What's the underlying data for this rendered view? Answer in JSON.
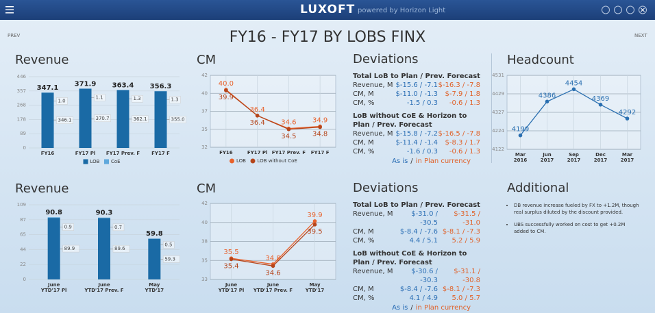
{
  "header": {
    "brand": "LUXOFT",
    "tagline": "powered by Horizon Light",
    "prev": "PREV",
    "next": "NEXT",
    "title": "FY16 - FY17 BY LOBS FINX"
  },
  "chart_data": [
    {
      "type": "bar",
      "title": "Revenue",
      "categories": [
        "FY16",
        "FY17 Pl",
        "FY17 Prev. F",
        "FY17 F"
      ],
      "totals": [
        347.1,
        371.9,
        363.4,
        356.3
      ],
      "series": [
        {
          "name": "LOB",
          "color": "#1a6aa5",
          "values": [
            346.1,
            370.7,
            362.1,
            355.0
          ],
          "value_labels": [
            "346.1",
            "370.7",
            "362.1",
            "355.0"
          ]
        },
        {
          "name": "CoE",
          "color": "#5fa8dc",
          "values": [
            1.0,
            1.1,
            1.3,
            1.3
          ],
          "value_labels": [
            "1.0",
            "1.1",
            "1.3",
            "1.3"
          ]
        }
      ],
      "ylim": [
        0,
        446
      ],
      "yticks": [
        0,
        {
          "value": 89.2,
          "label": "89"
        },
        {
          "value": 178.4,
          "label": "178"
        },
        {
          "value": 267.6,
          "label": "268"
        },
        {
          "value": 356.8,
          "label": "357"
        },
        446
      ],
      "grid": true,
      "legend": "bottom"
    },
    {
      "type": "line",
      "title": "CM",
      "categories": [
        "FY16",
        "FY17 Pl",
        "FY17 Prev. F",
        "FY17 F"
      ],
      "series": [
        {
          "name": "LOB",
          "color": "#e8622c",
          "values": [
            40.0,
            36.4,
            34.6,
            34.9
          ],
          "value_labels": [
            "40.0",
            "36.4",
            "34.6",
            "34.9"
          ]
        },
        {
          "name": "LOB without CoE",
          "color": "#b5451b",
          "values": [
            39.9,
            36.4,
            34.5,
            34.8
          ]
        }
      ],
      "ylim": [
        32,
        42
      ],
      "yticks": [
        32,
        {
          "value": 34.5,
          "label": "35"
        },
        37,
        {
          "value": 39.5,
          "label": "40"
        },
        42
      ],
      "grid": true,
      "legend": "bottom"
    },
    {
      "type": "line",
      "title": "Headcount",
      "categories": [
        "Mar\n2016",
        "Jun\n2017",
        "Sep\n2017",
        "Dec\n2017",
        "Mar\n2017"
      ],
      "series": [
        {
          "name": "Headcount",
          "color": "#2a6fb0",
          "values": [
            4199,
            4386,
            4454,
            4369,
            4292
          ]
        }
      ],
      "ylim": [
        4122,
        4531
      ],
      "yticks": [
        4122,
        {
          "value": 4224.25,
          "label": "4224"
        },
        {
          "value": 4326.5,
          "label": "4327"
        },
        {
          "value": 4428.75,
          "label": "4429"
        },
        4531
      ],
      "grid": true
    },
    {
      "type": "bar",
      "title": "Revenue",
      "categories": [
        "June\nYTD'17 Pl",
        "June\nYTD'17 Prev. F",
        "May\nYTD'17"
      ],
      "totals": [
        90.8,
        90.3,
        59.8
      ],
      "series": [
        {
          "name": "LOB",
          "color": "#1a6aa5",
          "values": [
            89.9,
            89.6,
            59.3
          ]
        },
        {
          "name": "CoE",
          "color": "#5fa8dc",
          "values": [
            0.9,
            0.7,
            0.5
          ]
        }
      ],
      "ylim": [
        0,
        109
      ],
      "yticks": [
        0,
        {
          "value": 21.8,
          "label": "22"
        },
        {
          "value": 43.6,
          "label": "44"
        },
        {
          "value": 65.4,
          "label": "65"
        },
        {
          "value": 87.2,
          "label": "87"
        },
        109
      ],
      "grid": true
    },
    {
      "type": "line",
      "title": "CM",
      "categories": [
        "June\nYTD'17 Pl",
        "June\nYTD'17 Prev. F",
        "May\nYTD'17"
      ],
      "series": [
        {
          "name": "LOB",
          "color": "#e8622c",
          "values": [
            35.5,
            34.8,
            39.9
          ]
        },
        {
          "name": "LOB without CoE",
          "color": "#b5451b",
          "values": [
            35.4,
            34.6,
            39.5
          ]
        }
      ],
      "ylim": [
        33,
        42
      ],
      "yticks": [
        33,
        {
          "value": 35.25,
          "label": "35"
        },
        {
          "value": 37.5,
          "label": "38"
        },
        {
          "value": 39.75,
          "label": "40"
        },
        42
      ],
      "grid": true
    }
  ],
  "deviations": [
    {
      "title": "Deviations",
      "sections": [
        {
          "heading": "Total LoB to Plan / Prev. Forecast",
          "rows": [
            [
              "Revenue, M",
              "$-15.6 / -7.1",
              "$-16.3 / -7.8"
            ],
            [
              "CM, M",
              "$-11.0 / -1.3",
              "$-7.9 / 1.8"
            ],
            [
              "CM, %",
              "-1.5 / 0.3",
              "-0.6 / 1.3"
            ]
          ]
        },
        {
          "heading": "LoB without CoE & Horizon to Plan / Prev. Forecast",
          "rows": [
            [
              "Revenue, M",
              "$-15.8 / -7.2",
              "$-16.5 / -7.8"
            ],
            [
              "CM, M",
              "$-11.4 / -1.4",
              "$-8.3 / 1.7"
            ],
            [
              "CM, %",
              "-1.6 / 0.3",
              "-0.6 / 1.3"
            ]
          ]
        }
      ],
      "legend": [
        "As is",
        "/",
        "in Plan currency"
      ]
    },
    {
      "title": "Deviations",
      "sections": [
        {
          "heading": "Total LoB to Plan / Prev. Forecast",
          "rows": [
            [
              "Revenue, M",
              "$-31.0 / -30.5",
              "$-31.5 / -31.0"
            ],
            [
              "CM, M",
              "$-8.4 / -7.6",
              "$-8.1 / -7.3"
            ],
            [
              "CM, %",
              "4.4 / 5.1",
              "5.2 / 5.9"
            ]
          ]
        },
        {
          "heading": "LoB without CoE & Horizon to Plan / Prev. Forecast",
          "rows": [
            [
              "Revenue, M",
              "$-30.6 / -30.3",
              "$-31.1 / -30.8"
            ],
            [
              "CM, M",
              "$-8.4 / -7.6",
              "$-8.1 / -7.3"
            ],
            [
              "CM, %",
              "4.1 / 4.9",
              "5.0 / 5.7"
            ]
          ]
        }
      ],
      "legend": [
        "As is",
        "/",
        "in Plan currency"
      ]
    }
  ],
  "additional": {
    "title": "Additional",
    "items": [
      "DB revenue increase fueled by FX to +1.2M, though real surplus diluted by the discount provided.",
      "UBS successfully worked on cost to get +0.2M added to CM."
    ]
  }
}
